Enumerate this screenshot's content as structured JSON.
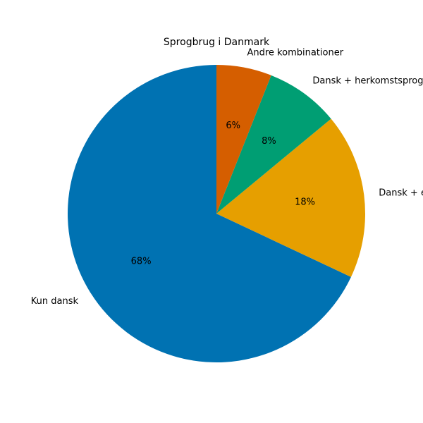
{
  "chart_data": {
    "type": "pie",
    "title": "Sprogbrug i Danmark",
    "slices": [
      {
        "label": "Kun dansk",
        "value": 68,
        "pct_label": "68%",
        "color": "#0072B2"
      },
      {
        "label": "Dansk + engelsk",
        "value": 18,
        "pct_label": "18%",
        "color": "#E69F00"
      },
      {
        "label": "Dansk + herkomstsprog",
        "value": 8,
        "pct_label": "8%",
        "color": "#009E73"
      },
      {
        "label": "Andre kombinationer",
        "value": 6,
        "pct_label": "6%",
        "color": "#D55E00"
      }
    ],
    "start_angle": "top",
    "direction": "counterclockwise",
    "legend": "none"
  }
}
